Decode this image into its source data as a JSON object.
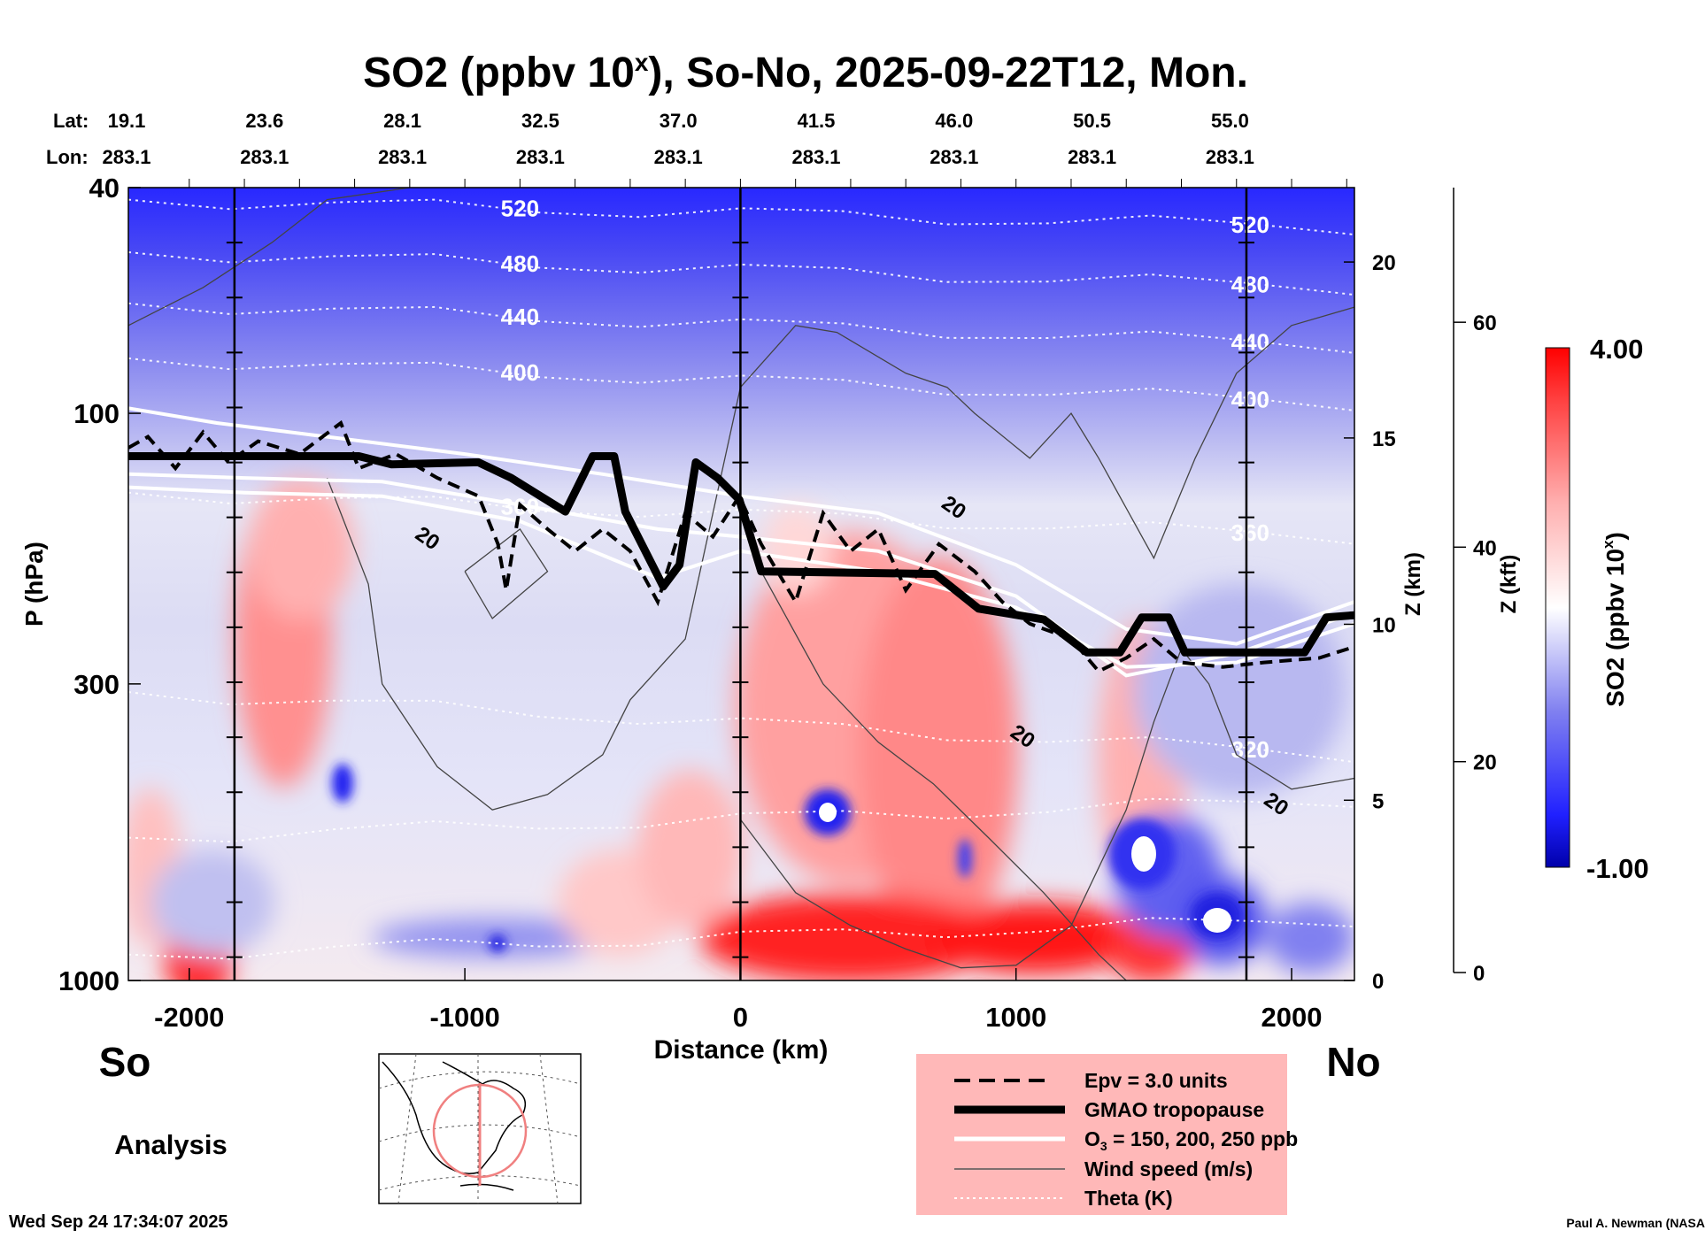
{
  "chart_data": {
    "type": "heatmap",
    "title_prefix": "SO2 (ppbv 10",
    "title_sup": "x",
    "title_suffix": "), So-No, 2025-09-22T12, Mon.",
    "xlabel": "Distance (km)",
    "ylabel": "P (hPa)",
    "z_km_label": "Z (km)",
    "z_kft_label": "Z (kft)",
    "xlim": [
      -2221,
      2228
    ],
    "ylim_hPa": [
      1000,
      40
    ],
    "x_ticks": [
      -2000,
      -1000,
      0,
      1000,
      2000
    ],
    "y_ticks": [
      40,
      100,
      300,
      1000
    ],
    "z_km_ticks": [
      0,
      5,
      10,
      15,
      20
    ],
    "z_kft_ticks": [
      0,
      20,
      40,
      60
    ],
    "section_lines_km": [
      -1836,
      0,
      1836
    ],
    "lat_label": "Lat:",
    "lon_label": "Lon:",
    "lats": [
      "19.1",
      "23.6",
      "28.1",
      "32.5",
      "37.0",
      "41.5",
      "46.0",
      "50.5",
      "55.0"
    ],
    "lons": [
      "283.1",
      "283.1",
      "283.1",
      "283.1",
      "283.1",
      "283.1",
      "283.1",
      "283.1",
      "283.1"
    ],
    "south_label": "So",
    "north_label": "No",
    "mode_label": "Analysis",
    "colorbar": {
      "label_prefix": "SO2 (ppbv 10",
      "label_sup": "x",
      "label_suffix": ")",
      "max_label": "4.00",
      "min_label": "-1.00",
      "range": [
        -1.0,
        4.0
      ],
      "colors": [
        "#0000aa",
        "#2020ff",
        "#8080f0",
        "#ffffff",
        "#ffb0b0",
        "#ff4040",
        "#ff0000"
      ]
    },
    "tropopause": [
      [
        -2221,
        119
      ],
      [
        -1858,
        119
      ],
      [
        -1385,
        119
      ],
      [
        -1266,
        123
      ],
      [
        -951,
        122
      ],
      [
        -832,
        130
      ],
      [
        -635,
        149
      ],
      [
        -536,
        119
      ],
      [
        -458,
        119
      ],
      [
        -418,
        149
      ],
      [
        -280,
        202
      ],
      [
        -221,
        185
      ],
      [
        -162,
        122
      ],
      [
        -83,
        130
      ],
      [
        -4,
        142
      ],
      [
        75,
        190
      ],
      [
        706,
        192
      ],
      [
        864,
        221
      ],
      [
        1101,
        231
      ],
      [
        1258,
        264
      ],
      [
        1377,
        264
      ],
      [
        1456,
        229
      ],
      [
        1554,
        229
      ],
      [
        1613,
        264
      ],
      [
        2047,
        264
      ],
      [
        2126,
        229
      ],
      [
        2228,
        227
      ]
    ],
    "epv": [
      [
        -2221,
        115
      ],
      [
        -2150,
        110
      ],
      [
        -2050,
        125
      ],
      [
        -1950,
        108
      ],
      [
        -1858,
        122
      ],
      [
        -1750,
        112
      ],
      [
        -1600,
        118
      ],
      [
        -1450,
        104
      ],
      [
        -1385,
        125
      ],
      [
        -1250,
        118
      ],
      [
        -1100,
        130
      ],
      [
        -950,
        140
      ],
      [
        -880,
        170
      ],
      [
        -850,
        205
      ],
      [
        -800,
        145
      ],
      [
        -700,
        160
      ],
      [
        -600,
        175
      ],
      [
        -500,
        160
      ],
      [
        -400,
        175
      ],
      [
        -300,
        215
      ],
      [
        -200,
        150
      ],
      [
        -100,
        165
      ],
      [
        -4,
        140
      ],
      [
        75,
        170
      ],
      [
        200,
        215
      ],
      [
        300,
        150
      ],
      [
        400,
        175
      ],
      [
        500,
        160
      ],
      [
        600,
        205
      ],
      [
        720,
        170
      ],
      [
        850,
        190
      ],
      [
        950,
        215
      ],
      [
        1050,
        235
      ],
      [
        1200,
        250
      ],
      [
        1300,
        285
      ],
      [
        1400,
        270
      ],
      [
        1500,
        250
      ],
      [
        1600,
        275
      ],
      [
        1750,
        280
      ],
      [
        1900,
        275
      ],
      [
        2100,
        270
      ],
      [
        2228,
        258
      ]
    ],
    "o3_lines": [
      [
        [
          -2221,
          98
        ],
        [
          -1900,
          104
        ],
        [
          -1500,
          110
        ],
        [
          -1000,
          118
        ],
        [
          -500,
          128
        ],
        [
          0,
          140
        ],
        [
          500,
          150
        ],
        [
          1000,
          185
        ],
        [
          1400,
          240
        ],
        [
          1800,
          255
        ],
        [
          2228,
          215
        ]
      ],
      [
        [
          -2221,
          128
        ],
        [
          -1800,
          130
        ],
        [
          -1300,
          132
        ],
        [
          -800,
          145
        ],
        [
          -300,
          160
        ],
        [
          0,
          165
        ],
        [
          500,
          175
        ],
        [
          1000,
          210
        ],
        [
          1400,
          290
        ],
        [
          1800,
          265
        ],
        [
          2228,
          225
        ]
      ],
      [
        [
          -2221,
          135
        ],
        [
          -1800,
          138
        ],
        [
          -1300,
          140
        ],
        [
          -800,
          155
        ],
        [
          -300,
          195
        ],
        [
          0,
          175
        ],
        [
          500,
          190
        ],
        [
          1000,
          220
        ],
        [
          1400,
          280
        ],
        [
          1800,
          275
        ],
        [
          2228,
          235
        ]
      ]
    ],
    "theta_lines": [
      {
        "label": "520",
        "p": [
          42,
          47
        ]
      },
      {
        "label": "480",
        "p": [
          52,
          60
        ]
      },
      {
        "label": "440",
        "p": [
          64,
          76
        ]
      },
      {
        "label": "400",
        "p": [
          80,
          96
        ]
      },
      {
        "label": "360",
        "p": [
          138,
          165
        ]
      },
      {
        "label": "320",
        "p": [
          310,
          400
        ]
      },
      {
        "label": "",
        "p": [
          560,
          480
        ]
      },
      {
        "label": "",
        "p": [
          900,
          780
        ]
      }
    ],
    "wind_label": "20",
    "wind_contours": [
      [
        [
          -2221,
          70
        ],
        [
          -1950,
          60
        ],
        [
          -1700,
          50
        ],
        [
          -1500,
          42
        ],
        [
          -1200,
          40
        ]
      ],
      [
        [
          -1500,
          130
        ],
        [
          -1350,
          200
        ],
        [
          -1300,
          300
        ],
        [
          -1100,
          420
        ],
        [
          -900,
          500
        ],
        [
          -700,
          470
        ],
        [
          -500,
          400
        ],
        [
          -400,
          320
        ],
        [
          -200,
          250
        ],
        [
          -100,
          150
        ],
        [
          0,
          90
        ],
        [
          200,
          70
        ],
        [
          350,
          72
        ],
        [
          600,
          85
        ],
        [
          750,
          90
        ],
        [
          850,
          100
        ],
        [
          1050,
          120
        ],
        [
          1200,
          100
        ],
        [
          1300,
          120
        ],
        [
          1500,
          180
        ],
        [
          1650,
          120
        ],
        [
          1800,
          85
        ],
        [
          2000,
          70
        ],
        [
          2228,
          65
        ]
      ],
      [
        [
          0,
          520
        ],
        [
          200,
          700
        ],
        [
          400,
          800
        ],
        [
          600,
          880
        ],
        [
          800,
          950
        ],
        [
          1000,
          940
        ],
        [
          1200,
          800
        ],
        [
          1400,
          500
        ],
        [
          1500,
          350
        ],
        [
          1600,
          260
        ],
        [
          1700,
          300
        ],
        [
          1800,
          400
        ],
        [
          2000,
          460
        ],
        [
          2228,
          440
        ]
      ],
      [
        [
          75,
          190
        ],
        [
          300,
          300
        ],
        [
          500,
          380
        ],
        [
          700,
          450
        ],
        [
          900,
          560
        ],
        [
          1100,
          700
        ],
        [
          1300,
          900
        ],
        [
          1400,
          1000
        ]
      ],
      [
        [
          -1000,
          190
        ],
        [
          -900,
          230
        ],
        [
          -700,
          190
        ],
        [
          -800,
          160
        ],
        [
          -1000,
          190
        ]
      ]
    ],
    "legend": [
      {
        "style": "dashed",
        "label": "Epv = 3.0 units"
      },
      {
        "style": "thick",
        "label": "GMAO tropopause"
      },
      {
        "style": "white",
        "label_main": "O",
        "label_sub": "3",
        "label_rest": " = 150, 200, 250 ppb"
      },
      {
        "style": "thin",
        "label": "Wind speed (m/s)"
      },
      {
        "style": "dotted",
        "label": "Theta (K)"
      }
    ],
    "legend_bg": "#ffb8b8",
    "footer_date": "Wed Sep 24 17:34:07 2025",
    "credit": "Paul A. Newman (NASA"
  }
}
